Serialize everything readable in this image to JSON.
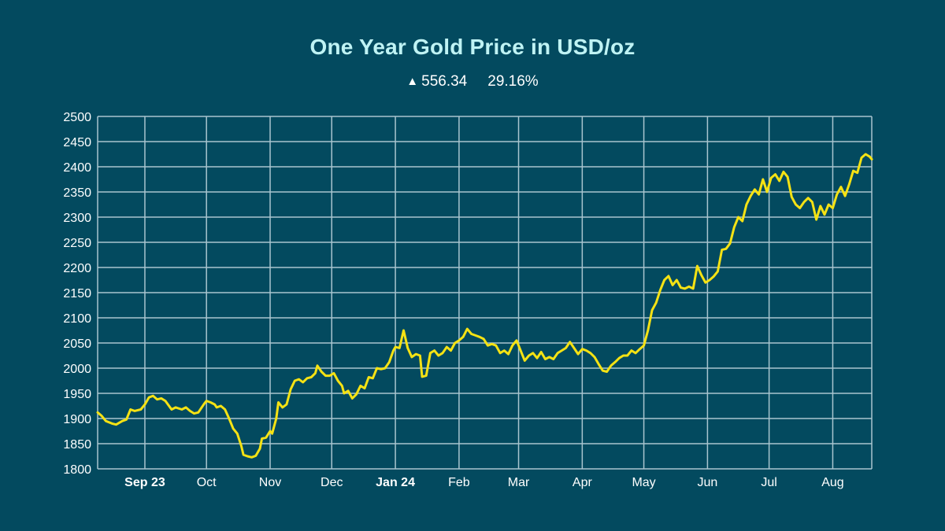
{
  "colors": {
    "background": "#034a5f",
    "title": "#bff3f4",
    "grid": "#a9c5cf",
    "line": "#f5e214",
    "text": "#ffffff"
  },
  "stats": {
    "change_icon": "triangle-up-icon",
    "change_symbol": "▲",
    "change_value": "556.34",
    "change_percent": "29.16%"
  },
  "chart_data": {
    "type": "line",
    "title": "One Year Gold Price in USD/oz",
    "xlabel": "",
    "ylabel": "",
    "ylim": [
      1800,
      2500
    ],
    "yticks": [
      1800,
      1850,
      1900,
      1950,
      2000,
      2050,
      2100,
      2150,
      2200,
      2250,
      2300,
      2350,
      2400,
      2450,
      2500
    ],
    "grid": true,
    "x_ticks": [
      {
        "label": "Sep 23",
        "date": "2023-09-01",
        "bold": true
      },
      {
        "label": "Oct",
        "date": "2023-10-01",
        "bold": false
      },
      {
        "label": "Nov",
        "date": "2023-11-01",
        "bold": false
      },
      {
        "label": "Dec",
        "date": "2023-12-01",
        "bold": false
      },
      {
        "label": "Jan 24",
        "date": "2024-01-01",
        "bold": true
      },
      {
        "label": "Feb",
        "date": "2024-02-01",
        "bold": false
      },
      {
        "label": "Mar",
        "date": "2024-03-01",
        "bold": false
      },
      {
        "label": "Apr",
        "date": "2024-04-01",
        "bold": false
      },
      {
        "label": "May",
        "date": "2024-05-01",
        "bold": false
      },
      {
        "label": "Jun",
        "date": "2024-06-01",
        "bold": false
      },
      {
        "label": "Jul",
        "date": "2024-07-01",
        "bold": false
      },
      {
        "label": "Aug",
        "date": "2024-08-01",
        "bold": false
      }
    ],
    "xlim": [
      "2023-08-09",
      "2024-08-20"
    ],
    "series": [
      {
        "points": [
          [
            "2023-08-09",
            1912
          ],
          [
            "2023-08-11",
            1905
          ],
          [
            "2023-08-13",
            1895
          ],
          [
            "2023-08-16",
            1890
          ],
          [
            "2023-08-18",
            1888
          ],
          [
            "2023-08-21",
            1895
          ],
          [
            "2023-08-23",
            1898
          ],
          [
            "2023-08-25",
            1918
          ],
          [
            "2023-08-27",
            1915
          ],
          [
            "2023-08-30",
            1918
          ],
          [
            "2023-09-01",
            1928
          ],
          [
            "2023-09-03",
            1942
          ],
          [
            "2023-09-05",
            1945
          ],
          [
            "2023-09-07",
            1938
          ],
          [
            "2023-09-09",
            1940
          ],
          [
            "2023-09-11",
            1935
          ],
          [
            "2023-09-14",
            1918
          ],
          [
            "2023-09-16",
            1922
          ],
          [
            "2023-09-19",
            1918
          ],
          [
            "2023-09-21",
            1922
          ],
          [
            "2023-09-23",
            1915
          ],
          [
            "2023-09-25",
            1910
          ],
          [
            "2023-09-27",
            1912
          ],
          [
            "2023-09-30",
            1930
          ],
          [
            "2023-10-01",
            1935
          ],
          [
            "2023-10-03",
            1932
          ],
          [
            "2023-10-05",
            1928
          ],
          [
            "2023-10-06",
            1922
          ],
          [
            "2023-10-08",
            1925
          ],
          [
            "2023-10-10",
            1918
          ],
          [
            "2023-10-12",
            1900
          ],
          [
            "2023-10-14",
            1880
          ],
          [
            "2023-10-16",
            1870
          ],
          [
            "2023-10-18",
            1845
          ],
          [
            "2023-10-19",
            1828
          ],
          [
            "2023-10-21",
            1825
          ],
          [
            "2023-10-23",
            1823
          ],
          [
            "2023-10-25",
            1826
          ],
          [
            "2023-10-27",
            1840
          ],
          [
            "2023-10-28",
            1860
          ],
          [
            "2023-10-30",
            1862
          ],
          [
            "2023-11-01",
            1875
          ],
          [
            "2023-11-02",
            1870
          ],
          [
            "2023-11-04",
            1900
          ],
          [
            "2023-11-05",
            1932
          ],
          [
            "2023-11-07",
            1922
          ],
          [
            "2023-11-09",
            1928
          ],
          [
            "2023-11-11",
            1958
          ],
          [
            "2023-11-13",
            1975
          ],
          [
            "2023-11-15",
            1978
          ],
          [
            "2023-11-17",
            1972
          ],
          [
            "2023-11-19",
            1980
          ],
          [
            "2023-11-21",
            1982
          ],
          [
            "2023-11-23",
            1990
          ],
          [
            "2023-11-24",
            2005
          ],
          [
            "2023-11-26",
            1993
          ],
          [
            "2023-11-28",
            1985
          ],
          [
            "2023-11-30",
            1985
          ],
          [
            "2023-12-02",
            1990
          ],
          [
            "2023-12-04",
            1975
          ],
          [
            "2023-12-06",
            1965
          ],
          [
            "2023-12-07",
            1950
          ],
          [
            "2023-12-09",
            1955
          ],
          [
            "2023-12-11",
            1940
          ],
          [
            "2023-12-13",
            1948
          ],
          [
            "2023-12-15",
            1965
          ],
          [
            "2023-12-17",
            1960
          ],
          [
            "2023-12-19",
            1982
          ],
          [
            "2023-12-21",
            1980
          ],
          [
            "2023-12-23",
            2000
          ],
          [
            "2023-12-25",
            1998
          ],
          [
            "2023-12-27",
            2000
          ],
          [
            "2023-12-29",
            2012
          ],
          [
            "2023-12-31",
            2035
          ],
          [
            "2024-01-01",
            2042
          ],
          [
            "2024-01-03",
            2040
          ],
          [
            "2024-01-05",
            2075
          ],
          [
            "2024-01-07",
            2040
          ],
          [
            "2024-01-09",
            2022
          ],
          [
            "2024-01-11",
            2028
          ],
          [
            "2024-01-13",
            2025
          ],
          [
            "2024-01-14",
            1983
          ],
          [
            "2024-01-16",
            1985
          ],
          [
            "2024-01-18",
            2030
          ],
          [
            "2024-01-20",
            2035
          ],
          [
            "2024-01-22",
            2025
          ],
          [
            "2024-01-24",
            2030
          ],
          [
            "2024-01-26",
            2042
          ],
          [
            "2024-01-28",
            2035
          ],
          [
            "2024-01-30",
            2050
          ],
          [
            "2024-02-01",
            2055
          ],
          [
            "2024-02-03",
            2062
          ],
          [
            "2024-02-05",
            2078
          ],
          [
            "2024-02-07",
            2068
          ],
          [
            "2024-02-09",
            2065
          ],
          [
            "2024-02-11",
            2062
          ],
          [
            "2024-02-13",
            2058
          ],
          [
            "2024-02-15",
            2045
          ],
          [
            "2024-02-17",
            2048
          ],
          [
            "2024-02-19",
            2045
          ],
          [
            "2024-02-21",
            2030
          ],
          [
            "2024-02-23",
            2035
          ],
          [
            "2024-02-25",
            2028
          ],
          [
            "2024-02-27",
            2045
          ],
          [
            "2024-02-29",
            2055
          ],
          [
            "2024-03-02",
            2035
          ],
          [
            "2024-03-04",
            2015
          ],
          [
            "2024-03-06",
            2025
          ],
          [
            "2024-03-08",
            2030
          ],
          [
            "2024-03-10",
            2020
          ],
          [
            "2024-03-12",
            2032
          ],
          [
            "2024-03-14",
            2018
          ],
          [
            "2024-03-16",
            2022
          ],
          [
            "2024-03-18",
            2018
          ],
          [
            "2024-03-20",
            2030
          ],
          [
            "2024-03-22",
            2035
          ],
          [
            "2024-03-24",
            2040
          ],
          [
            "2024-03-26",
            2052
          ],
          [
            "2024-03-28",
            2040
          ],
          [
            "2024-03-30",
            2028
          ],
          [
            "2024-04-01",
            2038
          ],
          [
            "2024-04-03",
            2035
          ],
          [
            "2024-04-05",
            2030
          ],
          [
            "2024-04-07",
            2022
          ],
          [
            "2024-04-09",
            2008
          ],
          [
            "2024-04-11",
            1995
          ],
          [
            "2024-04-13",
            1993
          ],
          [
            "2024-04-15",
            2005
          ],
          [
            "2024-04-17",
            2012
          ],
          [
            "2024-04-19",
            2020
          ],
          [
            "2024-04-21",
            2025
          ],
          [
            "2024-04-23",
            2025
          ],
          [
            "2024-04-25",
            2035
          ],
          [
            "2024-04-27",
            2030
          ],
          [
            "2024-04-29",
            2038
          ],
          [
            "2024-05-01",
            2045
          ],
          [
            "2024-05-03",
            2075
          ],
          [
            "2024-05-05",
            2115
          ],
          [
            "2024-05-07",
            2130
          ],
          [
            "2024-05-09",
            2155
          ],
          [
            "2024-05-11",
            2175
          ],
          [
            "2024-05-13",
            2183
          ],
          [
            "2024-05-15",
            2165
          ],
          [
            "2024-05-17",
            2175
          ],
          [
            "2024-05-19",
            2160
          ],
          [
            "2024-05-21",
            2158
          ],
          [
            "2024-05-23",
            2162
          ],
          [
            "2024-05-25",
            2158
          ],
          [
            "2024-05-27",
            2203
          ],
          [
            "2024-05-29",
            2185
          ],
          [
            "2024-05-31",
            2170
          ],
          [
            "2024-06-02",
            2175
          ],
          [
            "2024-06-04",
            2182
          ],
          [
            "2024-06-06",
            2192
          ],
          [
            "2024-06-08",
            2235
          ],
          [
            "2024-06-10",
            2237
          ],
          [
            "2024-06-12",
            2248
          ],
          [
            "2024-06-14",
            2280
          ],
          [
            "2024-06-16",
            2300
          ],
          [
            "2024-06-18",
            2292
          ],
          [
            "2024-06-20",
            2325
          ],
          [
            "2024-06-22",
            2342
          ],
          [
            "2024-06-24",
            2355
          ],
          [
            "2024-06-26",
            2345
          ],
          [
            "2024-06-28",
            2375
          ],
          [
            "2024-06-30",
            2350
          ],
          [
            "2024-07-02",
            2378
          ],
          [
            "2024-07-04",
            2385
          ],
          [
            "2024-07-06",
            2372
          ],
          [
            "2024-07-08",
            2390
          ],
          [
            "2024-07-10",
            2380
          ],
          [
            "2024-07-12",
            2340
          ],
          [
            "2024-07-14",
            2325
          ],
          [
            "2024-07-16",
            2318
          ],
          [
            "2024-07-18",
            2330
          ],
          [
            "2024-07-20",
            2338
          ],
          [
            "2024-07-22",
            2330
          ],
          [
            "2024-07-24",
            2295
          ],
          [
            "2024-07-26",
            2322
          ],
          [
            "2024-07-28",
            2305
          ],
          [
            "2024-07-30",
            2325
          ],
          [
            "2024-08-01",
            2318
          ],
          [
            "2024-08-03",
            2345
          ],
          [
            "2024-08-05",
            2360
          ],
          [
            "2024-08-07",
            2342
          ],
          [
            "2024-08-09",
            2365
          ],
          [
            "2024-08-11",
            2392
          ],
          [
            "2024-08-13",
            2388
          ],
          [
            "2024-08-15",
            2418
          ],
          [
            "2024-08-17",
            2425
          ],
          [
            "2024-08-19",
            2420
          ],
          [
            "2024-08-20",
            2415
          ]
        ]
      }
    ]
  }
}
